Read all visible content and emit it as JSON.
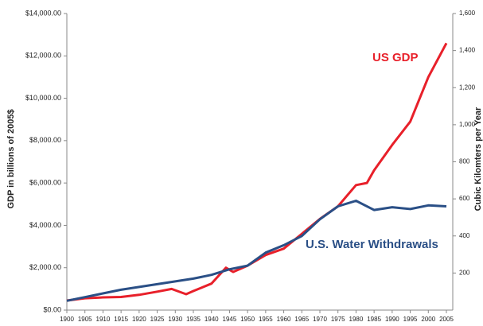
{
  "chart_data": {
    "type": "line",
    "ylabel": "GDP in billions of 2005$",
    "y2label": "Cubic Kilomters per Year",
    "annotations": [
      "US GDP",
      "U.S. Water Withdrawals"
    ],
    "xlim": [
      1900,
      2005
    ],
    "xticks": [
      1900,
      1905,
      1910,
      1915,
      1920,
      1925,
      1930,
      1935,
      1940,
      1945,
      1950,
      1955,
      1960,
      1965,
      1970,
      1975,
      1980,
      1985,
      1990,
      1995,
      2000,
      2005
    ],
    "ylim": [
      0,
      14000
    ],
    "yticks": [
      {
        "value": 0,
        "label": "$0.00"
      },
      {
        "value": 2000,
        "label": "$2,000.00"
      },
      {
        "value": 4000,
        "label": "$4,000.00"
      },
      {
        "value": 6000,
        "label": "$6,000.00"
      },
      {
        "value": 8000,
        "label": "$8,000.00"
      },
      {
        "value": 10000,
        "label": "$10,000.00"
      },
      {
        "value": 12000,
        "label": "$12,000.00"
      },
      {
        "value": 14000,
        "label": "$14,000.00"
      }
    ],
    "y2lim": [
      0,
      1600
    ],
    "y2ticks": [
      200,
      400,
      600,
      800,
      {
        "value": 1000,
        "label": "1,000"
      },
      {
        "value": 1200,
        "label": "1,200"
      },
      {
        "value": 1400,
        "label": "1,400"
      },
      {
        "value": 1600,
        "label": "1,600"
      }
    ],
    "grid": false,
    "series": [
      {
        "name": "US GDP",
        "color": "#e8202a",
        "x": [
          1900,
          1905,
          1910,
          1915,
          1920,
          1925,
          1929,
          1933,
          1935,
          1940,
          1944,
          1946,
          1950,
          1955,
          1960,
          1965,
          1970,
          1975,
          1980,
          1983,
          1985,
          1990,
          1995,
          2000,
          2005
        ],
        "values": [
          450,
          560,
          600,
          620,
          720,
          870,
          1000,
          750,
          900,
          1250,
          2000,
          1800,
          2100,
          2600,
          2900,
          3600,
          4300,
          4900,
          5900,
          6000,
          6600,
          7800,
          8900,
          11000,
          12600
        ]
      },
      {
        "name": "U.S. Water Withdrawals",
        "color": "#2a4f86",
        "axis": "y2",
        "x": [
          1900,
          1905,
          1910,
          1915,
          1920,
          1925,
          1930,
          1935,
          1940,
          1945,
          1950,
          1955,
          1960,
          1965,
          1970,
          1975,
          1980,
          1985,
          1990,
          1995,
          2000,
          2005
        ],
        "values": [
          50,
          70,
          90,
          110,
          125,
          140,
          155,
          170,
          190,
          220,
          240,
          310,
          350,
          400,
          490,
          560,
          590,
          540,
          555,
          545,
          565,
          560
        ]
      }
    ]
  }
}
